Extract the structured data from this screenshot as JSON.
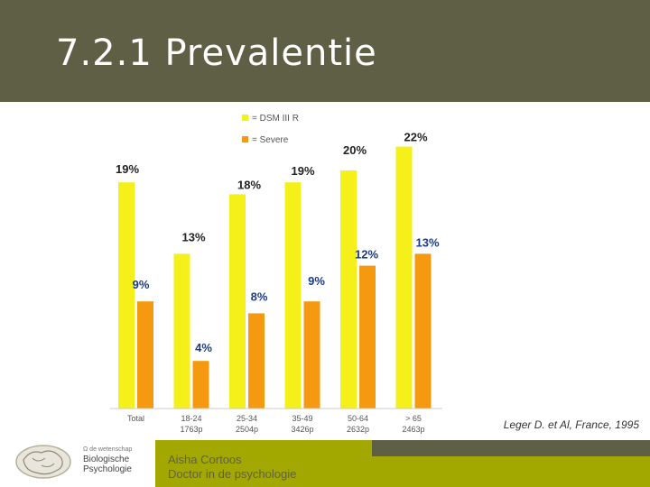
{
  "slide": {
    "title": "7.2.1 Prevalentie",
    "citation": "Leger D. et Al,  France,  1995"
  },
  "footer": {
    "name_line1": "Aisha Cortoos",
    "name_line2": "Doctor in de psychologie",
    "logo_small": "Ω de wetenschap",
    "logo_line1": "Biologische",
    "logo_line2": "Psychologie"
  },
  "colors": {
    "header": "#5f5f46",
    "accent": "#a3a800",
    "series_dsm": "#f5f01a",
    "series_severe": "#f59a10"
  },
  "chart_data": {
    "type": "bar",
    "categories": [
      "Total",
      "18-24\n1763p",
      "25-34\n2504p",
      "35-49\n3426p",
      "50-64\n2632p",
      "> 65\n2463p"
    ],
    "category_labels": [
      {
        "line1": "Total",
        "line2": ""
      },
      {
        "line1": "18-24",
        "line2": "1763p"
      },
      {
        "line1": "25-34",
        "line2": "2504p"
      },
      {
        "line1": "35-49",
        "line2": "3426p"
      },
      {
        "line1": "50-64",
        "line2": "2632p"
      },
      {
        "line1": "> 65",
        "line2": "2463p"
      }
    ],
    "series": [
      {
        "name": "= DSM III R",
        "values": [
          19,
          13,
          18,
          19,
          20,
          22
        ],
        "labels": [
          "19%",
          "13%",
          "18%",
          "19%",
          "20%",
          "22%"
        ]
      },
      {
        "name": "= Severe",
        "values": [
          9,
          4,
          8,
          9,
          12,
          13
        ],
        "labels": [
          "9%",
          "4%",
          "8%",
          "9%",
          "12%",
          "13%"
        ]
      }
    ],
    "annotation": "*",
    "ylim": [
      0,
      23
    ],
    "legend_position": "top-center"
  }
}
